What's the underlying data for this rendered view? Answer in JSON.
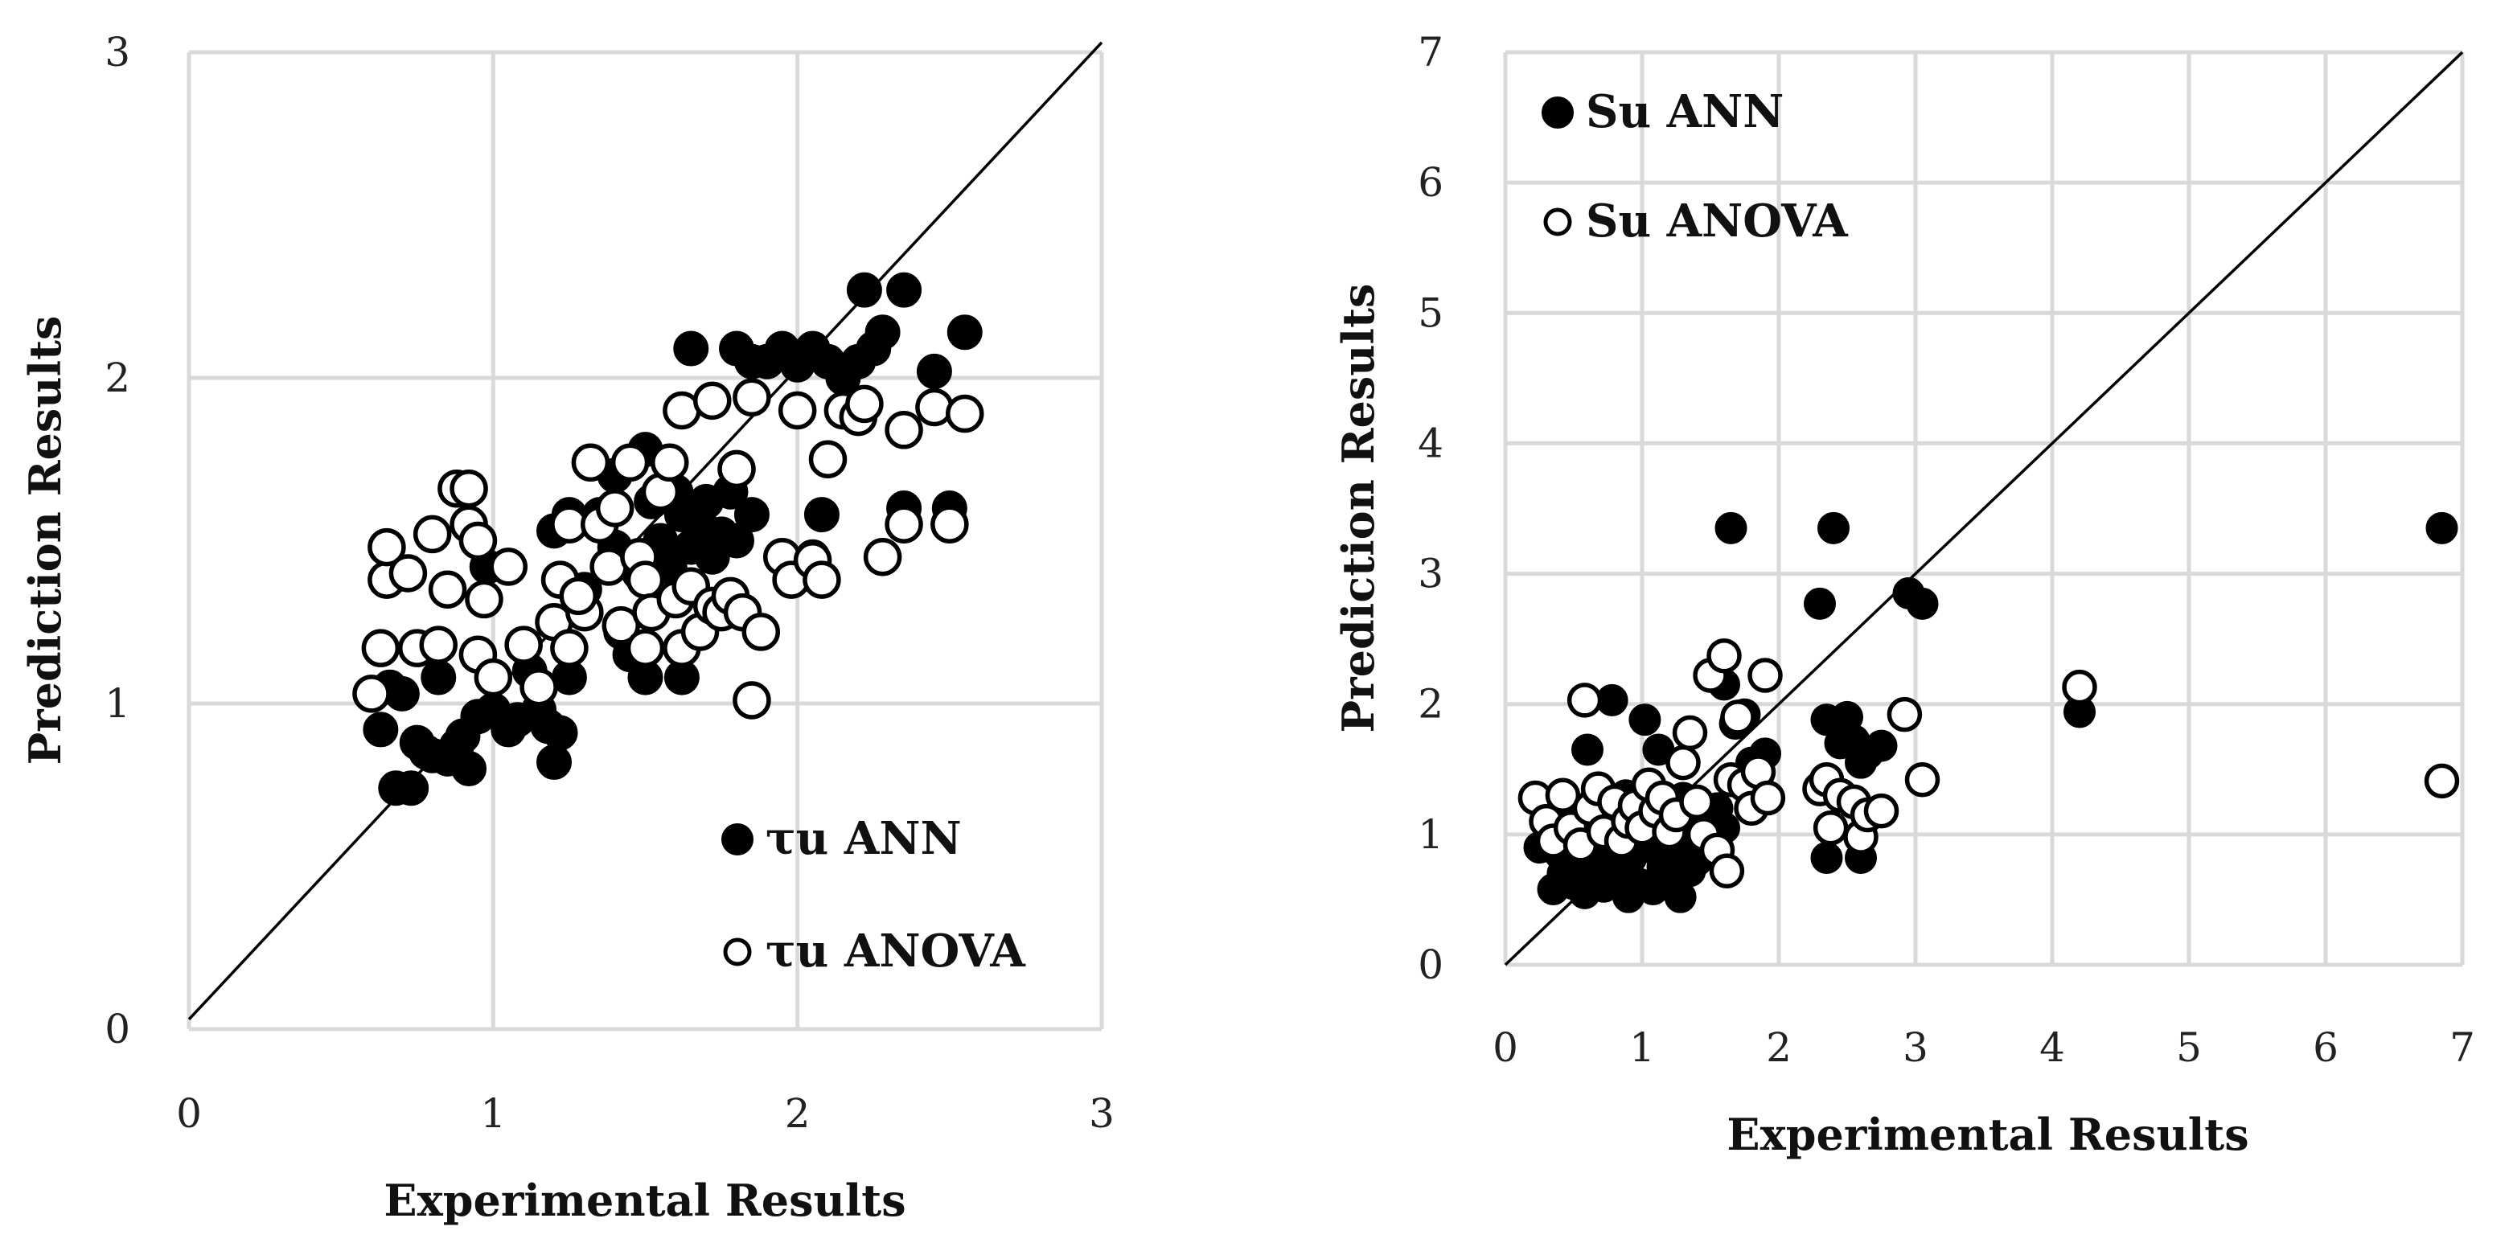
{
  "chart_data": [
    {
      "type": "scatter",
      "title": "",
      "xlabel": "Experimental Results",
      "ylabel": "Prediction Results",
      "xlim": [
        0,
        3
      ],
      "ylim": [
        0,
        3
      ],
      "xticks": [
        "0",
        "1",
        "2",
        "3"
      ],
      "yticks": [
        "0",
        "1",
        "2",
        "3"
      ],
      "grid": true,
      "legend_position": "bottom-right",
      "reference_line": {
        "name": "y = x",
        "x": [
          0,
          3
        ],
        "y": [
          0.03,
          3.03
        ]
      },
      "series": [
        {
          "name": "τu ANN",
          "marker": "filled-circle",
          "points": [
            [
              0.63,
              0.92
            ],
            [
              0.66,
              1.05
            ],
            [
              0.68,
              0.74
            ],
            [
              0.7,
              1.03
            ],
            [
              0.73,
              0.74
            ],
            [
              0.75,
              0.88
            ],
            [
              0.78,
              0.85
            ],
            [
              0.8,
              0.84
            ],
            [
              0.82,
              1.08
            ],
            [
              0.85,
              0.83
            ],
            [
              0.88,
              0.87
            ],
            [
              0.9,
              0.9
            ],
            [
              0.92,
              0.8
            ],
            [
              0.95,
              0.96
            ],
            [
              0.98,
              1.42
            ],
            [
              1.0,
              0.98
            ],
            [
              1.05,
              0.92
            ],
            [
              1.08,
              0.95
            ],
            [
              1.12,
              1.1
            ],
            [
              1.15,
              0.98
            ],
            [
              1.18,
              0.93
            ],
            [
              1.2,
              0.82
            ],
            [
              1.22,
              0.91
            ],
            [
              1.25,
              1.08
            ],
            [
              1.2,
              1.53
            ],
            [
              1.25,
              1.58
            ],
            [
              1.3,
              1.35
            ],
            [
              1.35,
              1.58
            ],
            [
              1.4,
              1.48
            ],
            [
              1.42,
              1.22
            ],
            [
              1.45,
              1.15
            ],
            [
              1.48,
              1.4
            ],
            [
              1.5,
              1.78
            ],
            [
              1.52,
              1.62
            ],
            [
              1.55,
              1.5
            ],
            [
              1.58,
              1.42
            ],
            [
              1.6,
              1.65
            ],
            [
              1.62,
              1.58
            ],
            [
              1.65,
              1.48
            ],
            [
              1.68,
              1.55
            ],
            [
              1.7,
              1.62
            ],
            [
              1.72,
              1.45
            ],
            [
              1.75,
              1.52
            ],
            [
              1.78,
              1.65
            ],
            [
              1.8,
              1.5
            ],
            [
              1.85,
              1.58
            ],
            [
              1.5,
              1.08
            ],
            [
              1.62,
              1.08
            ],
            [
              1.65,
              2.09
            ],
            [
              1.8,
              2.09
            ],
            [
              1.85,
              2.05
            ],
            [
              1.9,
              2.05
            ],
            [
              1.95,
              2.09
            ],
            [
              2.0,
              2.04
            ],
            [
              2.05,
              2.09
            ],
            [
              2.1,
              2.05
            ],
            [
              2.15,
              2.0
            ],
            [
              2.2,
              2.05
            ],
            [
              2.25,
              2.09
            ],
            [
              2.28,
              2.14
            ],
            [
              2.22,
              2.27
            ],
            [
              2.35,
              2.27
            ],
            [
              2.45,
              2.02
            ],
            [
              2.55,
              2.14
            ],
            [
              2.35,
              1.6
            ],
            [
              2.5,
              1.6
            ],
            [
              2.08,
              1.58
            ],
            [
              2.05,
              1.45
            ],
            [
              1.4,
              1.7
            ],
            [
              1.75,
              1.3
            ]
          ]
        },
        {
          "name": "τu ANOVA",
          "marker": "open-circle",
          "points": [
            [
              0.6,
              1.03
            ],
            [
              0.63,
              1.17
            ],
            [
              0.65,
              1.38
            ],
            [
              0.65,
              1.48
            ],
            [
              0.72,
              1.4
            ],
            [
              0.75,
              1.17
            ],
            [
              0.8,
              1.52
            ],
            [
              0.82,
              1.18
            ],
            [
              0.85,
              1.35
            ],
            [
              0.88,
              1.66
            ],
            [
              0.92,
              1.66
            ],
            [
              0.92,
              1.55
            ],
            [
              0.95,
              1.5
            ],
            [
              0.97,
              1.32
            ],
            [
              0.95,
              1.15
            ],
            [
              1.0,
              1.08
            ],
            [
              1.05,
              1.42
            ],
            [
              1.1,
              1.18
            ],
            [
              1.15,
              1.05
            ],
            [
              1.2,
              1.25
            ],
            [
              1.22,
              1.38
            ],
            [
              1.25,
              1.17
            ],
            [
              1.25,
              1.55
            ],
            [
              1.3,
              1.28
            ],
            [
              1.32,
              1.74
            ],
            [
              1.35,
              1.55
            ],
            [
              1.38,
              1.42
            ],
            [
              1.42,
              1.24
            ],
            [
              1.45,
              1.74
            ],
            [
              1.48,
              1.45
            ],
            [
              1.5,
              1.38
            ],
            [
              1.5,
              1.17
            ],
            [
              1.52,
              1.28
            ],
            [
              1.55,
              1.65
            ],
            [
              1.58,
              1.74
            ],
            [
              1.6,
              1.32
            ],
            [
              1.62,
              1.17
            ],
            [
              1.65,
              1.36
            ],
            [
              1.68,
              1.22
            ],
            [
              1.72,
              1.3
            ],
            [
              1.75,
              1.28
            ],
            [
              1.78,
              1.33
            ],
            [
              1.8,
              1.72
            ],
            [
              1.82,
              1.28
            ],
            [
              1.85,
              1.94
            ],
            [
              1.88,
              1.22
            ],
            [
              1.85,
              1.01
            ],
            [
              1.95,
              1.45
            ],
            [
              1.98,
              1.38
            ],
            [
              2.0,
              1.9
            ],
            [
              2.05,
              1.44
            ],
            [
              2.08,
              1.38
            ],
            [
              2.1,
              1.75
            ],
            [
              2.15,
              1.9
            ],
            [
              2.2,
              1.88
            ],
            [
              2.22,
              1.92
            ],
            [
              2.28,
              1.45
            ],
            [
              2.35,
              1.84
            ],
            [
              2.35,
              1.55
            ],
            [
              2.45,
              1.91
            ],
            [
              2.5,
              1.55
            ],
            [
              2.55,
              1.89
            ],
            [
              1.62,
              1.9
            ],
            [
              1.72,
              1.93
            ],
            [
              1.4,
              1.6
            ],
            [
              1.28,
              1.33
            ]
          ]
        }
      ]
    },
    {
      "type": "scatter",
      "title": "",
      "xlabel": "Experimental Results",
      "ylabel": "Prediction Results",
      "xlim": [
        0,
        7
      ],
      "ylim": [
        0,
        7
      ],
      "xticks": [
        "0",
        "1",
        "2",
        "3",
        "4",
        "5",
        "6",
        "7"
      ],
      "yticks": [
        "0",
        "1",
        "2",
        "3",
        "4",
        "5",
        "6",
        "7"
      ],
      "grid": true,
      "legend_position": "top-left",
      "reference_line": {
        "name": "y = x",
        "x": [
          0,
          7
        ],
        "y": [
          0,
          7
        ]
      },
      "series": [
        {
          "name": "Su ANN",
          "marker": "filled-circle",
          "points": [
            [
              0.25,
              0.9
            ],
            [
              0.3,
              1.25
            ],
            [
              0.35,
              0.58
            ],
            [
              0.38,
              1.05
            ],
            [
              0.4,
              0.85
            ],
            [
              0.42,
              0.7
            ],
            [
              0.45,
              1.2
            ],
            [
              0.48,
              0.95
            ],
            [
              0.5,
              0.62
            ],
            [
              0.52,
              1.1
            ],
            [
              0.55,
              0.8
            ],
            [
              0.58,
              0.55
            ],
            [
              0.6,
              1.65
            ],
            [
              0.62,
              0.95
            ],
            [
              0.65,
              1.25
            ],
            [
              0.68,
              0.72
            ],
            [
              0.7,
              1.05
            ],
            [
              0.72,
              0.6
            ],
            [
              0.75,
              0.88
            ],
            [
              0.78,
              2.03
            ],
            [
              0.8,
              1.18
            ],
            [
              0.82,
              0.7
            ],
            [
              0.85,
              0.95
            ],
            [
              0.88,
              1.3
            ],
            [
              0.9,
              0.52
            ],
            [
              0.92,
              0.82
            ],
            [
              0.95,
              1.1
            ],
            [
              0.98,
              0.62
            ],
            [
              1.0,
              0.9
            ],
            [
              1.02,
              1.88
            ],
            [
              1.05,
              1.2
            ],
            [
              1.08,
              0.58
            ],
            [
              1.1,
              0.98
            ],
            [
              1.12,
              1.65
            ],
            [
              1.15,
              0.75
            ],
            [
              1.18,
              1.12
            ],
            [
              1.2,
              0.85
            ],
            [
              1.22,
              0.62
            ],
            [
              1.25,
              1.05
            ],
            [
              1.28,
              0.52
            ],
            [
              1.3,
              1.28
            ],
            [
              1.32,
              0.9
            ],
            [
              1.35,
              0.72
            ],
            [
              1.38,
              1.15
            ],
            [
              1.4,
              0.8
            ],
            [
              1.45,
              1.1
            ],
            [
              1.5,
              0.95
            ],
            [
              1.55,
              1.2
            ],
            [
              1.6,
              1.05
            ],
            [
              1.65,
              3.35
            ],
            [
              1.6,
              2.15
            ],
            [
              1.68,
              1.85
            ],
            [
              1.75,
              1.92
            ],
            [
              1.8,
              1.55
            ],
            [
              1.85,
              1.45
            ],
            [
              1.9,
              1.62
            ],
            [
              2.3,
              2.77
            ],
            [
              2.35,
              1.88
            ],
            [
              2.4,
              3.35
            ],
            [
              2.45,
              1.7
            ],
            [
              2.5,
              1.9
            ],
            [
              2.55,
              1.72
            ],
            [
              2.6,
              1.55
            ],
            [
              2.65,
              1.62
            ],
            [
              2.75,
              1.68
            ],
            [
              2.35,
              0.82
            ],
            [
              2.6,
              0.82
            ],
            [
              2.95,
              2.85
            ],
            [
              3.05,
              2.77
            ],
            [
              4.2,
              1.94
            ],
            [
              6.85,
              3.35
            ]
          ]
        },
        {
          "name": "Su ANOVA",
          "marker": "open-circle",
          "points": [
            [
              0.22,
              1.28
            ],
            [
              0.3,
              1.1
            ],
            [
              0.35,
              0.95
            ],
            [
              0.42,
              1.3
            ],
            [
              0.48,
              1.05
            ],
            [
              0.55,
              0.92
            ],
            [
              0.58,
              2.03
            ],
            [
              0.62,
              1.2
            ],
            [
              0.68,
              1.35
            ],
            [
              0.72,
              1.02
            ],
            [
              0.8,
              1.25
            ],
            [
              0.85,
              0.95
            ],
            [
              0.9,
              1.1
            ],
            [
              0.95,
              1.22
            ],
            [
              1.0,
              1.05
            ],
            [
              1.05,
              1.38
            ],
            [
              1.1,
              1.18
            ],
            [
              1.15,
              1.28
            ],
            [
              1.2,
              1.02
            ],
            [
              1.25,
              1.15
            ],
            [
              1.3,
              1.55
            ],
            [
              1.35,
              1.78
            ],
            [
              1.4,
              1.25
            ],
            [
              1.45,
              1.0
            ],
            [
              1.5,
              2.22
            ],
            [
              1.55,
              0.88
            ],
            [
              1.6,
              2.37
            ],
            [
              1.62,
              0.72
            ],
            [
              1.65,
              1.42
            ],
            [
              1.7,
              1.9
            ],
            [
              1.75,
              1.38
            ],
            [
              1.8,
              1.2
            ],
            [
              1.85,
              1.48
            ],
            [
              1.9,
              2.22
            ],
            [
              1.92,
              1.28
            ],
            [
              2.3,
              1.35
            ],
            [
              2.35,
              1.42
            ],
            [
              2.38,
              1.05
            ],
            [
              2.45,
              1.3
            ],
            [
              2.55,
              1.25
            ],
            [
              2.6,
              0.98
            ],
            [
              2.65,
              1.15
            ],
            [
              2.75,
              1.18
            ],
            [
              2.92,
              1.92
            ],
            [
              3.05,
              1.42
            ],
            [
              4.2,
              2.13
            ],
            [
              6.85,
              1.41
            ]
          ]
        }
      ]
    }
  ]
}
